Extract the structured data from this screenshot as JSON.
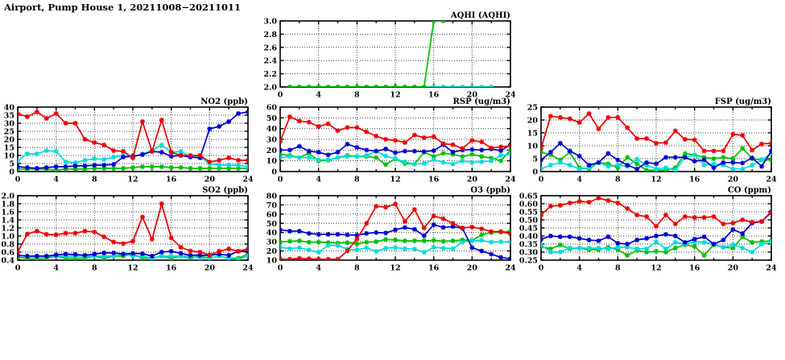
{
  "page": {
    "title": "Airport, Pump House 1, 20211008−20211011"
  },
  "palette": {
    "red": "#ee0000",
    "blue": "#0000cd",
    "green": "#00c000",
    "cyan": "#00dcdc",
    "axis": "#000000",
    "background": "#ffffff"
  },
  "chart_data": [
    {
      "id": "aqhi",
      "type": "line",
      "title": "AQHI (AQHI)",
      "x_range": [
        0,
        24
      ],
      "x_ticks": [
        0,
        4,
        8,
        12,
        16,
        20,
        24
      ],
      "y_range": [
        2.0,
        3.0
      ],
      "y_ticks": [
        2.0,
        2.2,
        2.4,
        2.6,
        2.8,
        3.0
      ],
      "y_decimals": 1,
      "grid": true,
      "legend": "none",
      "series": [
        {
          "name": "cyan",
          "color": "#00dcdc",
          "x": [
            1,
            2,
            3,
            4,
            5,
            6,
            7,
            8,
            9,
            10,
            11,
            12,
            13,
            14,
            15,
            16,
            17,
            18,
            19,
            20,
            21,
            22
          ],
          "y": [
            2,
            2,
            2,
            2,
            2,
            2,
            2,
            2,
            2,
            2,
            2,
            2,
            2,
            2,
            2,
            2,
            2,
            2,
            2,
            2,
            2,
            2
          ]
        },
        {
          "name": "green",
          "color": "#00c000",
          "x": [
            1,
            2,
            3,
            4,
            5,
            6,
            7,
            8,
            9,
            10,
            11,
            12,
            13,
            14,
            15,
            16,
            17
          ],
          "y": [
            2,
            2,
            2,
            2,
            2,
            2,
            2,
            2,
            2,
            2,
            2,
            2,
            2,
            2,
            2,
            3,
            3
          ]
        }
      ]
    },
    {
      "id": "no2",
      "type": "line",
      "title": "NO2 (ppb)",
      "x_range": [
        0,
        24
      ],
      "x_ticks": [
        0,
        4,
        8,
        12,
        16,
        20,
        24
      ],
      "y_range": [
        0,
        40
      ],
      "y_ticks": [
        0,
        5,
        10,
        15,
        20,
        25,
        30,
        35,
        40
      ],
      "y_decimals": 0,
      "grid": true,
      "legend": "none",
      "series": [
        {
          "name": "green",
          "color": "#00c000",
          "y": [
            1.5,
            1.5,
            1.5,
            1.5,
            1,
            1.5,
            1.5,
            1.5,
            2,
            2,
            2,
            2,
            2.5,
            3,
            3,
            3,
            2.5,
            2.5,
            2,
            2,
            2,
            2,
            2,
            2,
            2
          ]
        },
        {
          "name": "cyan",
          "color": "#00dcdc",
          "y": [
            6.5,
            11,
            11,
            13,
            12.5,
            6,
            5.5,
            7,
            8,
            7.5,
            9,
            10,
            9,
            11,
            13,
            16.5,
            12,
            12.5,
            9,
            9,
            5,
            4,
            4,
            4,
            3
          ]
        },
        {
          "name": "blue",
          "color": "#0000cd",
          "y": [
            3,
            2.5,
            2,
            2.5,
            3,
            3,
            3.5,
            3.5,
            4,
            4,
            4.5,
            9,
            9.5,
            10.5,
            12.5,
            12,
            9.5,
            10,
            9,
            8.5,
            26.5,
            28,
            31,
            36,
            37
          ]
        },
        {
          "name": "red",
          "color": "#ee0000",
          "y": [
            36,
            34,
            37,
            33,
            36,
            30,
            30,
            20,
            18,
            16.5,
            13,
            12.5,
            8.5,
            31,
            12.5,
            32,
            12,
            10,
            10,
            10,
            6,
            7,
            8.5,
            7,
            7
          ]
        }
      ]
    },
    {
      "id": "rsp",
      "type": "line",
      "title": "RSP (ug/m3)",
      "x_range": [
        0,
        24
      ],
      "x_ticks": [
        0,
        4,
        8,
        12,
        16,
        20,
        24
      ],
      "y_range": [
        0,
        60
      ],
      "y_ticks": [
        0,
        10,
        20,
        30,
        40,
        50,
        60
      ],
      "y_decimals": 0,
      "grid": true,
      "legend": "none",
      "series": [
        {
          "name": "green",
          "color": "#00c000",
          "y": [
            16,
            15,
            13,
            17,
            10,
            10.5,
            13,
            15,
            14,
            14,
            13,
            6.5,
            12,
            7.5,
            7,
            18,
            14,
            17,
            16,
            14,
            16,
            14,
            12.5,
            10,
            20
          ]
        },
        {
          "name": "cyan",
          "color": "#00dcdc",
          "y": [
            13,
            14,
            13,
            13,
            11,
            11,
            13,
            14,
            14,
            15,
            19,
            14.5,
            12,
            9,
            7,
            7.5,
            11,
            8.5,
            7,
            10,
            8.5,
            9,
            10,
            15,
            16
          ]
        },
        {
          "name": "blue",
          "color": "#0000cd",
          "y": [
            20,
            20,
            23.5,
            19,
            18,
            15.5,
            18,
            25.5,
            22.5,
            20,
            19,
            21,
            17.5,
            19,
            19,
            18.5,
            19.5,
            25,
            18,
            20,
            20.5,
            20,
            21,
            19.5,
            25
          ]
        },
        {
          "name": "red",
          "color": "#ee0000",
          "y": [
            28,
            51,
            47,
            46,
            42,
            44.5,
            38,
            41,
            41,
            37,
            33,
            30,
            29,
            27,
            34,
            31.5,
            32.5,
            26,
            25,
            21.5,
            29,
            27.5,
            22,
            23,
            24
          ]
        }
      ]
    },
    {
      "id": "fsp",
      "type": "line",
      "title": "FSP (ug/m3)",
      "x_range": [
        0,
        24
      ],
      "x_ticks": [
        0,
        4,
        8,
        12,
        16,
        20,
        24
      ],
      "y_range": [
        0,
        25
      ],
      "y_ticks": [
        0,
        5,
        10,
        15,
        20,
        25
      ],
      "y_decimals": 0,
      "grid": true,
      "legend": "none",
      "series": [
        {
          "name": "green",
          "color": "#00c000",
          "y": [
            7.5,
            6.5,
            4.5,
            7.5,
            1.5,
            1,
            3.5,
            3,
            1.5,
            5.5,
            3,
            0.5,
            0.5,
            0.5,
            1.5,
            7,
            6.5,
            5.5,
            5,
            5.5,
            5,
            9,
            5,
            4.5,
            4.5
          ]
        },
        {
          "name": "cyan",
          "color": "#00dcdc",
          "y": [
            1,
            2.5,
            3.5,
            2.5,
            1,
            1.5,
            3.5,
            2,
            2.5,
            2,
            4.8,
            2.5,
            1,
            1.5,
            0.5,
            5.5,
            6.5,
            2.5,
            3,
            2.5,
            1,
            1,
            2.5,
            4.5,
            7
          ]
        },
        {
          "name": "blue",
          "color": "#0000cd",
          "y": [
            4.5,
            7.5,
            11,
            8,
            6,
            2.5,
            3.5,
            7,
            4.5,
            2.5,
            1,
            3.5,
            3,
            5.5,
            5.5,
            5.5,
            4,
            4.5,
            1.5,
            3.5,
            3.5,
            3.3,
            5.3,
            2,
            8
          ]
        },
        {
          "name": "red",
          "color": "#ee0000",
          "y": [
            9,
            21.5,
            21,
            20.5,
            19,
            22.5,
            16.5,
            21,
            21,
            17,
            12.8,
            12.8,
            11,
            11.2,
            15.8,
            12.5,
            12.3,
            8,
            8,
            8,
            14.5,
            14,
            8.3,
            10.7,
            11
          ]
        }
      ]
    },
    {
      "id": "so2",
      "type": "line",
      "title": "SO2 (ppb)",
      "x_range": [
        0,
        24
      ],
      "x_ticks": [
        0,
        4,
        8,
        12,
        16,
        20,
        24
      ],
      "y_range": [
        0.4,
        2.0
      ],
      "y_ticks": [
        0.4,
        0.6,
        0.8,
        1.0,
        1.2,
        1.4,
        1.6,
        1.8,
        2.0
      ],
      "y_decimals": 1,
      "grid": true,
      "legend": "none",
      "series": [
        {
          "name": "green",
          "color": "#00c000",
          "y": [
            0.47,
            0.45,
            0.45,
            0.45,
            0.5,
            0.45,
            0.45,
            0.45,
            0.5,
            0.45,
            0.5,
            0.5,
            0.55,
            0.45,
            0.45,
            0.5,
            0.45,
            0.5,
            0.45,
            0.5,
            0.45,
            0.5,
            0.45,
            0.45,
            0.55
          ]
        },
        {
          "name": "cyan",
          "color": "#00dcdc",
          "y": [
            0.52,
            0.5,
            0.5,
            0.5,
            0.5,
            0.5,
            0.5,
            0.5,
            0.5,
            0.5,
            0.5,
            0.55,
            0.5,
            0.5,
            0.45,
            0.5,
            0.5,
            0.5,
            0.5,
            0.45,
            0.45,
            0.5,
            0.45,
            0.42,
            0.5
          ]
        },
        {
          "name": "blue",
          "color": "#0000cd",
          "y": [
            0.52,
            0.5,
            0.5,
            0.5,
            0.53,
            0.55,
            0.54,
            0.52,
            0.55,
            0.58,
            0.58,
            0.55,
            0.57,
            0.56,
            0.5,
            0.6,
            0.62,
            0.57,
            0.52,
            0.52,
            0.52,
            0.55,
            0.52,
            0.62,
            0.62
          ]
        },
        {
          "name": "red",
          "color": "#ee0000",
          "y": [
            0.6,
            1.05,
            1.12,
            1.04,
            1.03,
            1.07,
            1.07,
            1.12,
            1.1,
            0.98,
            0.85,
            0.81,
            0.87,
            1.47,
            0.92,
            1.8,
            0.95,
            0.72,
            0.63,
            0.6,
            0.53,
            0.62,
            0.68,
            0.62,
            0.68
          ]
        }
      ]
    },
    {
      "id": "o3",
      "type": "line",
      "title": "O3 (ppb)",
      "x_range": [
        0,
        24
      ],
      "x_ticks": [
        0,
        4,
        8,
        12,
        16,
        20,
        24
      ],
      "y_range": [
        10,
        80
      ],
      "y_ticks": [
        10,
        20,
        30,
        40,
        50,
        60,
        70,
        80
      ],
      "y_decimals": 0,
      "grid": true,
      "legend": "none",
      "series": [
        {
          "name": "green",
          "color": "#00c000",
          "y": [
            29.5,
            30.5,
            31,
            29.5,
            29.5,
            29,
            28.5,
            29,
            27.5,
            29.5,
            30,
            32.5,
            32,
            31,
            31,
            31,
            31.5,
            30.5,
            31,
            32,
            31.5,
            37.5,
            40,
            40.5,
            41.5
          ]
        },
        {
          "name": "cyan",
          "color": "#00dcdc",
          "y": [
            24,
            22.5,
            23.5,
            21,
            18.5,
            26,
            26,
            22,
            21,
            23.5,
            19.5,
            23,
            23.5,
            22.5,
            22,
            18.5,
            24,
            23,
            22.5,
            29.5,
            31,
            31.5,
            29.5,
            30,
            29.5
          ]
        },
        {
          "name": "blue",
          "color": "#0000cd",
          "y": [
            43,
            41.5,
            41.5,
            39,
            38,
            38,
            38,
            37.5,
            37,
            39,
            40,
            39.5,
            43,
            45.5,
            43.5,
            36.5,
            48.5,
            45.5,
            46.5,
            44.5,
            23.5,
            20,
            16.5,
            13,
            11.5
          ]
        },
        {
          "name": "red",
          "color": "#ee0000",
          "y": [
            11,
            11,
            12,
            11.5,
            11,
            11,
            11,
            20,
            33,
            50,
            68.5,
            67.5,
            71,
            52,
            65,
            45,
            58,
            55,
            50,
            45,
            46,
            44,
            41,
            41,
            38.5
          ]
        }
      ]
    },
    {
      "id": "co",
      "type": "line",
      "title": "CO (ppm)",
      "x_range": [
        0,
        24
      ],
      "x_ticks": [
        0,
        4,
        8,
        12,
        16,
        20,
        24
      ],
      "y_range": [
        0.25,
        0.65
      ],
      "y_ticks": [
        0.25,
        0.3,
        0.35,
        0.4,
        0.45,
        0.5,
        0.55,
        0.6,
        0.65
      ],
      "y_decimals": 2,
      "grid": true,
      "legend": "none",
      "series": [
        {
          "name": "green",
          "color": "#00c000",
          "y": [
            0.335,
            0.32,
            0.345,
            0.32,
            0.325,
            0.315,
            0.315,
            0.33,
            0.315,
            0.28,
            0.31,
            0.3,
            0.305,
            0.3,
            0.325,
            0.345,
            0.335,
            0.28,
            0.345,
            0.33,
            0.325,
            0.395,
            0.36,
            0.365,
            0.37
          ]
        },
        {
          "name": "cyan",
          "color": "#00dcdc",
          "y": [
            0.345,
            0.3,
            0.3,
            0.325,
            0.325,
            0.325,
            0.325,
            0.32,
            0.33,
            0.33,
            0.32,
            0.32,
            0.365,
            0.32,
            0.36,
            0.35,
            0.365,
            0.36,
            0.35,
            0.33,
            0.345,
            0.325,
            0.3,
            0.35,
            0.36
          ]
        },
        {
          "name": "blue",
          "color": "#0000cd",
          "y": [
            0.38,
            0.4,
            0.395,
            0.395,
            0.385,
            0.375,
            0.37,
            0.395,
            0.355,
            0.35,
            0.375,
            0.385,
            0.4,
            0.41,
            0.4,
            0.36,
            0.38,
            0.395,
            0.35,
            0.375,
            0.44,
            0.415,
            0.48,
            0.49,
            0.55
          ]
        },
        {
          "name": "red",
          "color": "#ee0000",
          "y": [
            0.53,
            0.585,
            0.59,
            0.605,
            0.615,
            0.61,
            0.635,
            0.62,
            0.605,
            0.57,
            0.53,
            0.52,
            0.46,
            0.53,
            0.475,
            0.52,
            0.515,
            0.515,
            0.52,
            0.475,
            0.48,
            0.5,
            0.485,
            0.49,
            0.545
          ]
        }
      ]
    }
  ]
}
